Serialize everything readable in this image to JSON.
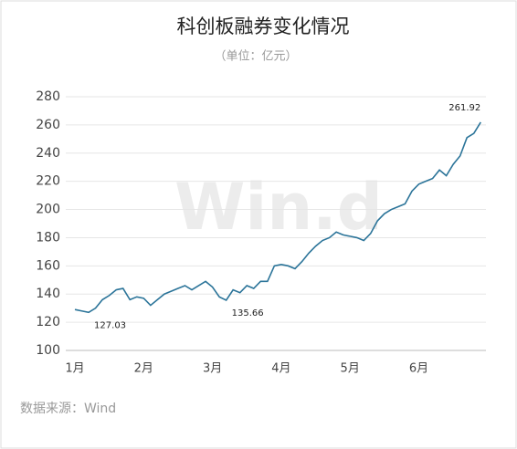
{
  "chart_data": {
    "type": "line",
    "title": "科创板融券变化情况",
    "subtitle": "（单位：亿元）",
    "source": "数据来源：Wind",
    "watermark": "Win.d",
    "categories": [
      "1月",
      null,
      null,
      null,
      null,
      null,
      null,
      null,
      null,
      null,
      "2月",
      null,
      null,
      null,
      null,
      null,
      null,
      null,
      null,
      null,
      "3月",
      null,
      null,
      null,
      null,
      null,
      null,
      null,
      null,
      null,
      "4月",
      null,
      null,
      null,
      null,
      null,
      null,
      null,
      null,
      null,
      "5月",
      null,
      null,
      null,
      null,
      null,
      null,
      null,
      null,
      null,
      "6月",
      null,
      null,
      null,
      null,
      null,
      null,
      null,
      null,
      null
    ],
    "series": [
      {
        "color": "#2b7499",
        "values": [
          129,
          128,
          127.03,
          130,
          136,
          139,
          143,
          144,
          136,
          138,
          137,
          132,
          136,
          140,
          142,
          144,
          146,
          143,
          146,
          149,
          145,
          138,
          135.66,
          143,
          141,
          146,
          144,
          149,
          149,
          160,
          161,
          160,
          158,
          163,
          169,
          174,
          178,
          180,
          184,
          182,
          181,
          180,
          178,
          183,
          192,
          197,
          200,
          202,
          204,
          213,
          218,
          220,
          222,
          228,
          224,
          232,
          238,
          251,
          254,
          261.92
        ],
        "value_labels": [
          null,
          null,
          "127.03",
          null,
          null,
          null,
          null,
          null,
          null,
          null,
          null,
          null,
          null,
          null,
          null,
          null,
          null,
          null,
          null,
          null,
          null,
          null,
          "135.66",
          null,
          null,
          null,
          null,
          null,
          null,
          null,
          null,
          null,
          null,
          null,
          null,
          null,
          null,
          null,
          null,
          null,
          null,
          null,
          null,
          null,
          null,
          null,
          null,
          null,
          null,
          null,
          null,
          null,
          null,
          null,
          null,
          null,
          null,
          null,
          null,
          "261.92"
        ]
      }
    ],
    "ylim": [
      100,
      280
    ],
    "yticks": [
      100,
      120,
      140,
      160,
      180,
      200,
      220,
      240,
      260,
      280
    ],
    "grid": true
  }
}
